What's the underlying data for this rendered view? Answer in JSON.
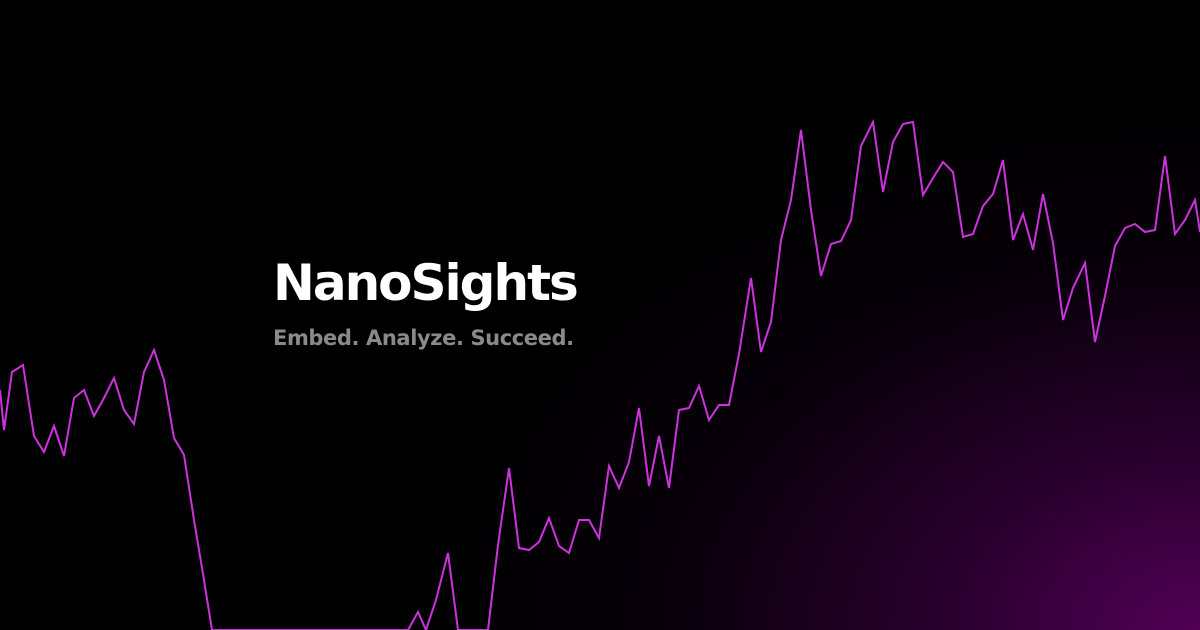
{
  "brand": {
    "name": "NanoSights",
    "tagline": "Embed. Analyze. Succeed."
  },
  "colors": {
    "background": "#000000",
    "glow": "#4a004e",
    "line": "#cc33dd",
    "title": "#ffffff",
    "tagline": "#8a8a8a"
  }
}
